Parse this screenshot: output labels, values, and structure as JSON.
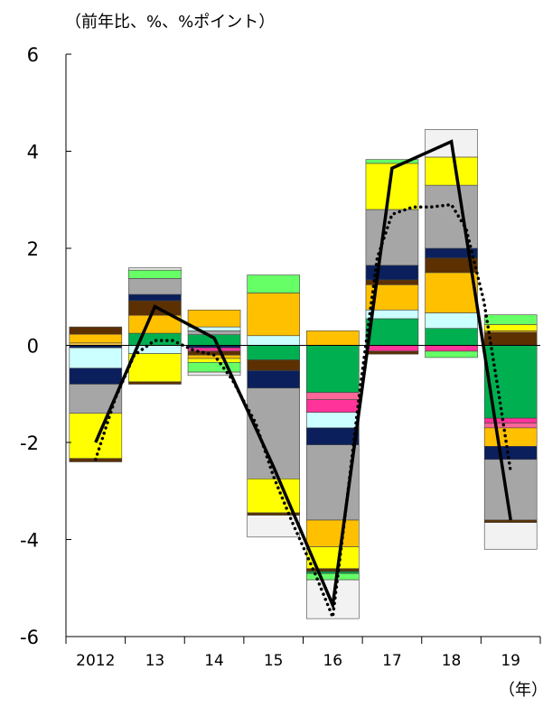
{
  "chart_data": {
    "type": "bar",
    "stacked": true,
    "unit_label": "（前年比、%、%ポイント）",
    "x_axis_unit": "（年）",
    "categories": [
      "2012",
      "13",
      "14",
      "15",
      "16",
      "17",
      "18",
      "19"
    ],
    "ylim": [
      -6,
      6
    ],
    "yticks": [
      -6,
      -4,
      -2,
      0,
      2,
      4,
      6
    ],
    "grid": false,
    "legend": "none",
    "stack_segments_positive": [
      [
        {
          "color": "#f5c842",
          "from": 0,
          "to": 0.05
        },
        {
          "color": "#ffc000",
          "from": 0.05,
          "to": 0.23
        },
        {
          "color": "#5c3000",
          "from": 0.23,
          "to": 0.38
        }
      ],
      [
        {
          "color": "#00b050",
          "from": 0.0,
          "to": 0.25
        },
        {
          "color": "#ffc000",
          "from": 0.25,
          "to": 0.62
        },
        {
          "color": "#5c3000",
          "from": 0.62,
          "to": 0.92
        },
        {
          "color": "#0b1f5c",
          "from": 0.92,
          "to": 1.05
        },
        {
          "color": "#a6a6a6",
          "from": 1.05,
          "to": 1.38
        },
        {
          "color": "#66ff66",
          "from": 1.38,
          "to": 1.55
        },
        {
          "color": "#e6e6e6",
          "from": 1.55,
          "to": 1.6
        }
      ],
      [
        {
          "color": "#00b050",
          "from": 0.0,
          "to": 0.22
        },
        {
          "color": "#a6a6a6",
          "from": 0.22,
          "to": 0.3
        },
        {
          "color": "#ccffff",
          "from": 0.3,
          "to": 0.38
        },
        {
          "color": "#ffc000",
          "from": 0.38,
          "to": 0.73
        }
      ],
      [
        {
          "color": "#ccffff",
          "from": 0.0,
          "to": 0.2
        },
        {
          "color": "#ffc000",
          "from": 0.2,
          "to": 1.08
        },
        {
          "color": "#66ff66",
          "from": 1.08,
          "to": 1.45
        }
      ],
      [
        {
          "color": "#ffc000",
          "from": 0.0,
          "to": 0.3
        }
      ],
      [
        {
          "color": "#00b050",
          "from": 0.0,
          "to": 0.55
        },
        {
          "color": "#ccffff",
          "from": 0.55,
          "to": 0.73
        },
        {
          "color": "#ffc000",
          "from": 0.73,
          "to": 1.25
        },
        {
          "color": "#5c3000",
          "from": 1.25,
          "to": 1.35
        },
        {
          "color": "#0b1f5c",
          "from": 1.35,
          "to": 1.65
        },
        {
          "color": "#a6a6a6",
          "from": 1.65,
          "to": 2.8
        },
        {
          "color": "#ffff00",
          "from": 2.8,
          "to": 3.75
        },
        {
          "color": "#66ff66",
          "from": 3.75,
          "to": 3.83
        }
      ],
      [
        {
          "color": "#00b050",
          "from": 0.0,
          "to": 0.35
        },
        {
          "color": "#ccffff",
          "from": 0.35,
          "to": 0.67
        },
        {
          "color": "#ffc000",
          "from": 0.67,
          "to": 1.5
        },
        {
          "color": "#5c3000",
          "from": 1.5,
          "to": 1.8
        },
        {
          "color": "#0b1f5c",
          "from": 1.8,
          "to": 2.0
        },
        {
          "color": "#a6a6a6",
          "from": 2.0,
          "to": 3.3
        },
        {
          "color": "#ffff00",
          "from": 3.3,
          "to": 3.88
        },
        {
          "color": "#f2f2f2",
          "from": 3.88,
          "to": 4.45
        }
      ],
      [
        {
          "color": "#5c3000",
          "from": 0.0,
          "to": 0.27
        },
        {
          "color": "#ffc000",
          "from": 0.27,
          "to": 0.3
        },
        {
          "color": "#ffff00",
          "from": 0.3,
          "to": 0.43
        },
        {
          "color": "#66ff66",
          "from": 0.43,
          "to": 0.63
        }
      ]
    ],
    "stack_segments_negative": [
      [
        {
          "color": "#0b1f5c",
          "from": 0,
          "to": -0.05
        },
        {
          "color": "#ccffff",
          "from": -0.05,
          "to": -0.47
        },
        {
          "color": "#0b1f5c",
          "from": -0.47,
          "to": -0.8
        },
        {
          "color": "#a6a6a6",
          "from": -0.8,
          "to": -1.4
        },
        {
          "color": "#ffff00",
          "from": -1.4,
          "to": -2.33
        },
        {
          "color": "#5c3000",
          "from": -2.33,
          "to": -2.4
        }
      ],
      [
        {
          "color": "#ccffff",
          "from": 0,
          "to": -0.17
        },
        {
          "color": "#ffff00",
          "from": -0.17,
          "to": -0.75
        },
        {
          "color": "#5c3000",
          "from": -0.75,
          "to": -0.8
        }
      ],
      [
        {
          "color": "#0b1f5c",
          "from": 0,
          "to": -0.05
        },
        {
          "color": "#ff3399",
          "from": -0.05,
          "to": -0.12
        },
        {
          "color": "#5c3000",
          "from": -0.12,
          "to": -0.2
        },
        {
          "color": "#ffc000",
          "from": -0.2,
          "to": -0.27
        },
        {
          "color": "#ffff00",
          "from": -0.27,
          "to": -0.35
        },
        {
          "color": "#66ff66",
          "from": -0.35,
          "to": -0.55
        },
        {
          "color": "#e6e6e6",
          "from": -0.55,
          "to": -0.62
        }
      ],
      [
        {
          "color": "#00b050",
          "from": 0,
          "to": -0.3
        },
        {
          "color": "#5c3000",
          "from": -0.3,
          "to": -0.52
        },
        {
          "color": "#0b1f5c",
          "from": -0.52,
          "to": -0.88
        },
        {
          "color": "#a6a6a6",
          "from": -0.88,
          "to": -2.75
        },
        {
          "color": "#ffff00",
          "from": -2.75,
          "to": -3.45
        },
        {
          "color": "#5c3000",
          "from": -3.45,
          "to": -3.5
        },
        {
          "color": "#f2f2f2",
          "from": -3.5,
          "to": -3.95
        }
      ],
      [
        {
          "color": "#00b050",
          "from": 0,
          "to": -0.97
        },
        {
          "color": "#ff6699",
          "from": -0.97,
          "to": -1.12
        },
        {
          "color": "#ff3399",
          "from": -1.12,
          "to": -1.38
        },
        {
          "color": "#ccffff",
          "from": -1.38,
          "to": -1.7
        },
        {
          "color": "#0b1f5c",
          "from": -1.7,
          "to": -2.05
        },
        {
          "color": "#a6a6a6",
          "from": -2.05,
          "to": -3.6
        },
        {
          "color": "#ffc000",
          "from": -3.6,
          "to": -4.15
        },
        {
          "color": "#ffff00",
          "from": -4.15,
          "to": -4.6
        },
        {
          "color": "#5c3000",
          "from": -4.6,
          "to": -4.66
        },
        {
          "color": "#00b050",
          "from": -4.66,
          "to": -4.7
        },
        {
          "color": "#66ff66",
          "from": -4.7,
          "to": -4.83
        },
        {
          "color": "#f2f2f2",
          "from": -4.83,
          "to": -5.63
        }
      ],
      [
        {
          "color": "#ff3399",
          "from": 0,
          "to": -0.12
        },
        {
          "color": "#5c3000",
          "from": -0.12,
          "to": -0.18
        }
      ],
      [
        {
          "color": "#ff3399",
          "from": 0,
          "to": -0.12
        },
        {
          "color": "#66ff66",
          "from": -0.12,
          "to": -0.25
        }
      ],
      [
        {
          "color": "#00b050",
          "from": 0,
          "to": -1.5
        },
        {
          "color": "#ff3399",
          "from": -1.5,
          "to": -1.6
        },
        {
          "color": "#ff6699",
          "from": -1.6,
          "to": -1.7
        },
        {
          "color": "#ffc000",
          "from": -1.7,
          "to": -2.08
        },
        {
          "color": "#0b1f5c",
          "from": -2.08,
          "to": -2.35
        },
        {
          "color": "#a6a6a6",
          "from": -2.35,
          "to": -3.6
        },
        {
          "color": "#5c3000",
          "from": -3.6,
          "to": -3.65
        },
        {
          "color": "#f2f2f2",
          "from": -3.65,
          "to": -4.2
        }
      ]
    ],
    "series": [
      {
        "style": "solid",
        "color": "#000000",
        "values": [
          -2.0,
          0.8,
          0.15,
          -2.5,
          -5.35,
          3.65,
          4.2,
          -3.6
        ]
      },
      {
        "style": "dotted",
        "color": "#000000",
        "points": [
          [
            0,
            -2.35
          ],
          [
            0.33,
            -1.1
          ],
          [
            0.65,
            -0.2
          ],
          [
            1.0,
            0.1
          ],
          [
            1.3,
            0.1
          ],
          [
            1.65,
            -0.1
          ],
          [
            2.0,
            -0.2
          ],
          [
            2.3,
            -0.7
          ],
          [
            2.7,
            -1.6
          ],
          [
            3.0,
            -2.7
          ],
          [
            3.3,
            -3.6
          ],
          [
            3.7,
            -4.7
          ],
          [
            4.0,
            -5.6
          ],
          [
            4.2,
            -3.6
          ],
          [
            4.45,
            -1.0
          ],
          [
            4.75,
            1.8
          ],
          [
            5.0,
            2.7
          ],
          [
            5.35,
            2.85
          ],
          [
            5.65,
            2.85
          ],
          [
            6.0,
            2.9
          ],
          [
            6.25,
            2.4
          ],
          [
            6.55,
            0.9
          ],
          [
            6.8,
            -1.0
          ],
          [
            7.0,
            -2.6
          ]
        ]
      }
    ]
  }
}
